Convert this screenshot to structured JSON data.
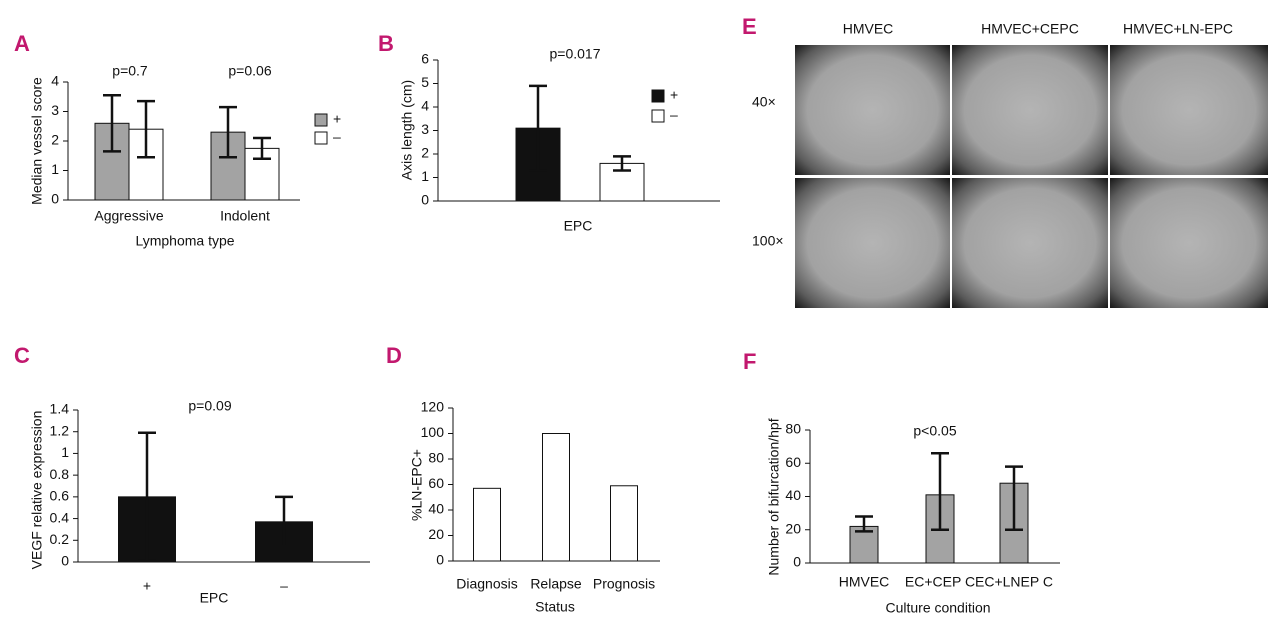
{
  "chart_data": [
    {
      "label": "A",
      "type": "bar",
      "ylabel": "Median vessel score",
      "xlabel": "Lymphoma type",
      "categories": [
        "Aggressive",
        "Indolent"
      ],
      "series": [
        {
          "name": "+",
          "color": "#a3a3a3",
          "values": [
            2.6,
            2.3
          ],
          "errors": [
            0.95,
            0.85
          ]
        },
        {
          "name": "–",
          "color": "#ffffff",
          "values": [
            2.4,
            1.75
          ],
          "errors": [
            0.95,
            0.35
          ]
        }
      ],
      "annotations": [
        "p=0.7",
        "p=0.06"
      ],
      "ylim": [
        0,
        4
      ],
      "yticks": [
        0,
        1,
        2,
        3,
        4
      ]
    },
    {
      "label": "B",
      "type": "bar",
      "ylabel": "Axis length (cm)",
      "xlabel": "EPC",
      "categories": [
        null
      ],
      "series": [
        {
          "name": "+",
          "color": "#111111",
          "values": [
            3.1
          ],
          "errors": [
            1.8
          ]
        },
        {
          "name": "–",
          "color": "#ffffff",
          "values": [
            1.6
          ],
          "errors": [
            0.3
          ]
        }
      ],
      "annotations": [
        "p=0.017"
      ],
      "ylim": [
        0,
        6
      ],
      "yticks": [
        0,
        1,
        2,
        3,
        4,
        5,
        6
      ]
    },
    {
      "label": "C",
      "type": "bar",
      "ylabel": "VEGF relative expression",
      "xlabel": "EPC",
      "categories": [
        "+",
        "–"
      ],
      "series": [
        {
          "color": "#111111",
          "values": [
            0.6,
            0.37
          ],
          "errors": [
            0.59,
            0.23
          ]
        }
      ],
      "annotations": [
        "p=0.09"
      ],
      "ylim": [
        0,
        1.4
      ],
      "yticks": [
        0,
        0.2,
        0.4,
        0.6,
        0.8,
        1,
        1.2,
        1.4
      ]
    },
    {
      "label": "D",
      "type": "bar",
      "ylabel": "%LN-EPC+",
      "xlabel": "Status",
      "categories": [
        "Diagnosis",
        "Relapse",
        "Prognosis"
      ],
      "series": [
        {
          "color": "#ffffff",
          "values": [
            57,
            100,
            59
          ]
        }
      ],
      "ylim": [
        0,
        120
      ],
      "yticks": [
        0,
        20,
        40,
        60,
        80,
        100,
        120
      ]
    },
    {
      "label": "F",
      "type": "bar",
      "ylabel": "Number of bifurcation/hpf",
      "xlabel": "Culture condition",
      "categories": [
        "HMVEC",
        "EC+CEP C",
        "EC+LNEP C"
      ],
      "series": [
        {
          "color": "#a3a3a3",
          "values": [
            22,
            41,
            48
          ],
          "errors": [
            [
              3,
              6
            ],
            [
              21,
              25
            ],
            [
              28,
              10
            ]
          ]
        }
      ],
      "annotations": [
        "p<0.05"
      ],
      "ylim": [
        0,
        80
      ],
      "yticks": [
        0,
        20,
        40,
        60,
        80
      ]
    }
  ],
  "micrographs": {
    "label": "E",
    "columns": [
      "HMVEC",
      "HMVEC+CEPC",
      "HMVEC+LN-EPC"
    ],
    "rows": [
      "40×",
      "100×"
    ]
  }
}
